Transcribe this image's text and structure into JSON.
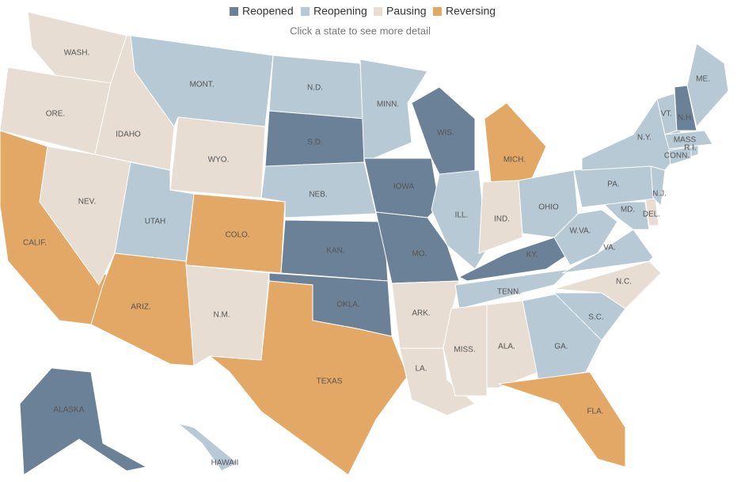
{
  "legend": [
    {
      "name": "Reopened",
      "color": "#6b8198"
    },
    {
      "name": "Reopening",
      "color": "#b6c9d5"
    },
    {
      "name": "Pausing",
      "color": "#e8ddd2"
    },
    {
      "name": "Reversing",
      "color": "#e3a865"
    }
  ],
  "subtitle": "Click a state to see more detail",
  "states": [
    {
      "label": "WASH.",
      "status": "Pausing"
    },
    {
      "label": "ORE.",
      "status": "Pausing"
    },
    {
      "label": "CALIF.",
      "status": "Reversing"
    },
    {
      "label": "NEV.",
      "status": "Pausing"
    },
    {
      "label": "IDAHO",
      "status": "Pausing"
    },
    {
      "label": "MONT.",
      "status": "Reopening"
    },
    {
      "label": "WYO.",
      "status": "Pausing"
    },
    {
      "label": "UTAH",
      "status": "Reopening"
    },
    {
      "label": "ARIZ.",
      "status": "Reversing"
    },
    {
      "label": "COLO.",
      "status": "Reversing"
    },
    {
      "label": "N.M.",
      "status": "Pausing"
    },
    {
      "label": "N.D.",
      "status": "Reopening"
    },
    {
      "label": "S.D.",
      "status": "Reopened"
    },
    {
      "label": "NEB.",
      "status": "Reopening"
    },
    {
      "label": "KAN.",
      "status": "Reopened"
    },
    {
      "label": "OKLA.",
      "status": "Reopened"
    },
    {
      "label": "TEXAS",
      "status": "Reversing"
    },
    {
      "label": "MINN.",
      "status": "Reopening"
    },
    {
      "label": "IOWA",
      "status": "Reopened"
    },
    {
      "label": "MO.",
      "status": "Reopened"
    },
    {
      "label": "ARK.",
      "status": "Pausing"
    },
    {
      "label": "LA.",
      "status": "Pausing"
    },
    {
      "label": "WIS.",
      "status": "Reopened"
    },
    {
      "label": "ILL.",
      "status": "Reopening"
    },
    {
      "label": "MICH.",
      "status": "Reversing"
    },
    {
      "label": "IND.",
      "status": "Pausing"
    },
    {
      "label": "OHIO",
      "status": "Reopening"
    },
    {
      "label": "KY.",
      "status": "Reopened"
    },
    {
      "label": "TENN.",
      "status": "Reopening"
    },
    {
      "label": "MISS.",
      "status": "Pausing"
    },
    {
      "label": "ALA.",
      "status": "Pausing"
    },
    {
      "label": "GA.",
      "status": "Reopening"
    },
    {
      "label": "FLA.",
      "status": "Reversing"
    },
    {
      "label": "S.C.",
      "status": "Reopening"
    },
    {
      "label": "N.C.",
      "status": "Pausing"
    },
    {
      "label": "VA.",
      "status": "Reopening"
    },
    {
      "label": "W.VA.",
      "status": "Reopening"
    },
    {
      "label": "MD.",
      "status": "Reopening"
    },
    {
      "label": "DEL.",
      "status": "Pausing"
    },
    {
      "label": "PA.",
      "status": "Reopening"
    },
    {
      "label": "N.J.",
      "status": "Reopening"
    },
    {
      "label": "N.Y.",
      "status": "Reopening"
    },
    {
      "label": "CONN.",
      "status": "Reopening"
    },
    {
      "label": "R.I.",
      "status": "Reopening"
    },
    {
      "label": "MASS",
      "status": "Reopening"
    },
    {
      "label": "VT.",
      "status": "Reopening"
    },
    {
      "label": "N.H.",
      "status": "Reopened"
    },
    {
      "label": "ME.",
      "status": "Reopening"
    },
    {
      "label": "ALASKA",
      "status": "Reopened"
    },
    {
      "label": "HAWAII",
      "status": "Reopening"
    }
  ]
}
